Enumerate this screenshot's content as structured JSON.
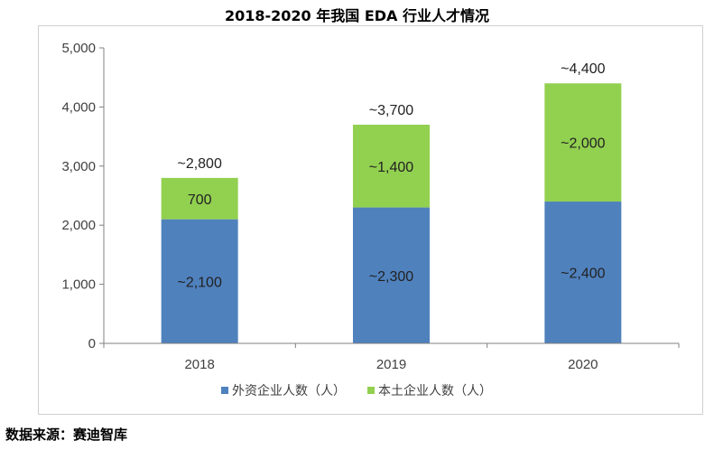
{
  "page": {
    "title": "2018-2020 年我国 EDA 行业人才情况",
    "source": "数据来源：赛迪智库"
  },
  "chart_data": {
    "type": "bar",
    "stacked": true,
    "title": "2018-2020 年我国 EDA 行业人才情况",
    "categories": [
      "2018",
      "2019",
      "2020"
    ],
    "ylim": [
      0,
      5000
    ],
    "yticks": [
      0,
      1000,
      2000,
      3000,
      4000,
      5000
    ],
    "ytick_labels": [
      "0",
      "1,000",
      "2,000",
      "3,000",
      "4,000",
      "5,000"
    ],
    "grid": false,
    "legend_position": "bottom",
    "series": [
      {
        "name": "外资企业人数（人）",
        "values": [
          2100,
          2300,
          2400
        ],
        "labels": [
          "~2,100",
          "~2,300",
          "~2,400"
        ],
        "color": "#4f81bd"
      },
      {
        "name": "本土企业人数（人）",
        "values": [
          700,
          1400,
          2000
        ],
        "labels": [
          "700",
          "~1,400",
          "~2,000"
        ],
        "color": "#92d050"
      }
    ],
    "totals": [
      2800,
      3700,
      4400
    ],
    "total_labels": [
      "~2,800",
      "~3,700",
      "~4,400"
    ]
  }
}
